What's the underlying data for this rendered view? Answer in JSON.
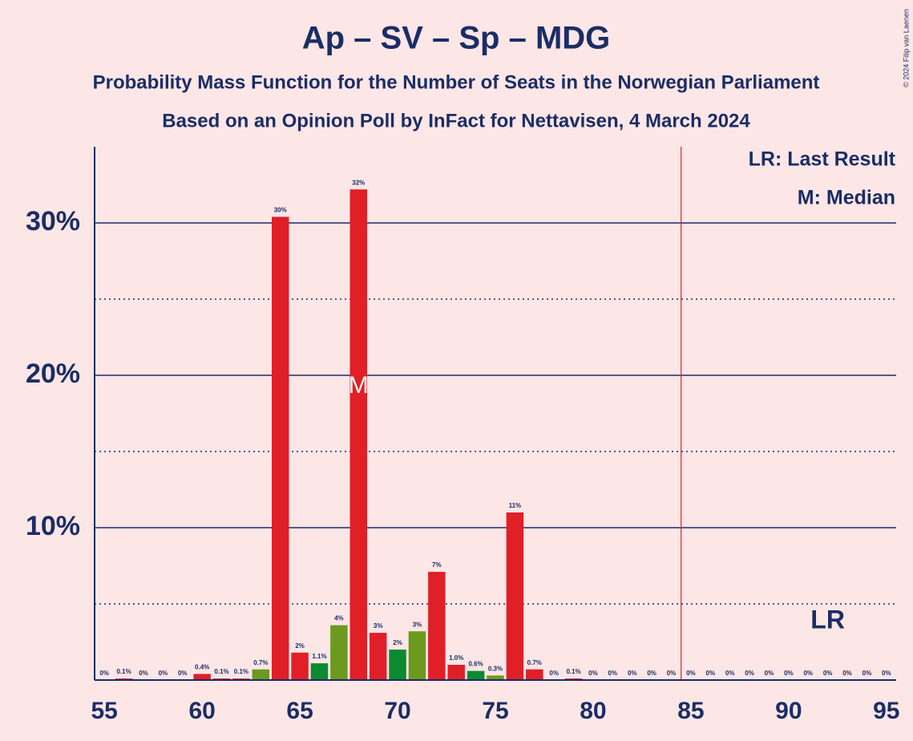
{
  "chart_data": {
    "type": "bar",
    "title": "Ap – SV – Sp – MDG",
    "subtitle": "Probability Mass Function for the Number of Seats in the Norwegian Parliament",
    "subtitle2": "Based on an Opinion Poll by InFact for Nettavisen, 4 March 2024",
    "credit": "© 2024 Filip van Laenen",
    "legend": [
      "LR: Last Result",
      "M: Median"
    ],
    "x": [
      55,
      56,
      57,
      58,
      59,
      60,
      61,
      62,
      63,
      64,
      65,
      66,
      67,
      68,
      69,
      70,
      71,
      72,
      73,
      74,
      75,
      76,
      77,
      78,
      79,
      80,
      81,
      82,
      83,
      84,
      85,
      86,
      87,
      88,
      89,
      90,
      91,
      92,
      93,
      94,
      95
    ],
    "values": [
      0,
      0.1,
      0,
      0,
      0,
      0.4,
      0.1,
      0.1,
      0.7,
      30.4,
      1.8,
      1.1,
      3.6,
      32.2,
      3.1,
      2.0,
      3.2,
      7.1,
      1.0,
      0.6,
      0.3,
      11.0,
      0.7,
      0,
      0.1,
      0,
      0,
      0,
      0,
      0,
      0,
      0,
      0,
      0,
      0,
      0,
      0,
      0,
      0,
      0,
      0
    ],
    "value_labels": [
      "0%",
      "0.1%",
      "0%",
      "0%",
      "0%",
      "0.4%",
      "0.1%",
      "0.1%",
      "0.7%",
      "30%",
      "2%",
      "1.1%",
      "4%",
      "32%",
      "3%",
      "2%",
      "3%",
      "7%",
      "1.0%",
      "0.6%",
      "0.3%",
      "11%",
      "0.7%",
      "0%",
      "0.1%",
      "0%",
      "0%",
      "0%",
      "0%",
      "0%",
      "0%",
      "0%",
      "0%",
      "0%",
      "0%",
      "0%",
      "0%",
      "0%",
      "0%",
      "0%",
      "0%"
    ],
    "colors": [
      "#e01f27",
      "#e01f27",
      "#e01f27",
      "#e01f27",
      "#e01f27",
      "#e01f27",
      "#e01f27",
      "#e01f27",
      "#6b9a1f",
      "#e01f27",
      "#e01f27",
      "#0b8a30",
      "#6b9a1f",
      "#e01f27",
      "#e01f27",
      "#0b8a30",
      "#6b9a1f",
      "#e01f27",
      "#e01f27",
      "#0b8a30",
      "#6b9a1f",
      "#e01f27",
      "#e01f27",
      "#e01f27",
      "#e01f27",
      "#e01f27",
      "#e01f27",
      "#e01f27",
      "#e01f27",
      "#e01f27",
      "#e01f27",
      "#e01f27",
      "#e01f27",
      "#e01f27",
      "#e01f27",
      "#e01f27",
      "#e01f27",
      "#e01f27",
      "#e01f27",
      "#e01f27",
      "#e01f27"
    ],
    "xlim": [
      54.5,
      95.5
    ],
    "xticks": [
      55,
      60,
      65,
      70,
      75,
      80,
      85,
      90,
      95
    ],
    "ylim": [
      0,
      35
    ],
    "yticks": [
      {
        "value": 10,
        "label": "10%"
      },
      {
        "value": 20,
        "label": "20%"
      },
      {
        "value": 30,
        "label": "30%"
      }
    ],
    "yminor": [
      5,
      15,
      25
    ],
    "threshold": 84.5,
    "threshold_color": "#e01f27",
    "median": {
      "seat": 68,
      "label": "M"
    },
    "last_result": {
      "seat": 92,
      "label": "LR"
    }
  }
}
